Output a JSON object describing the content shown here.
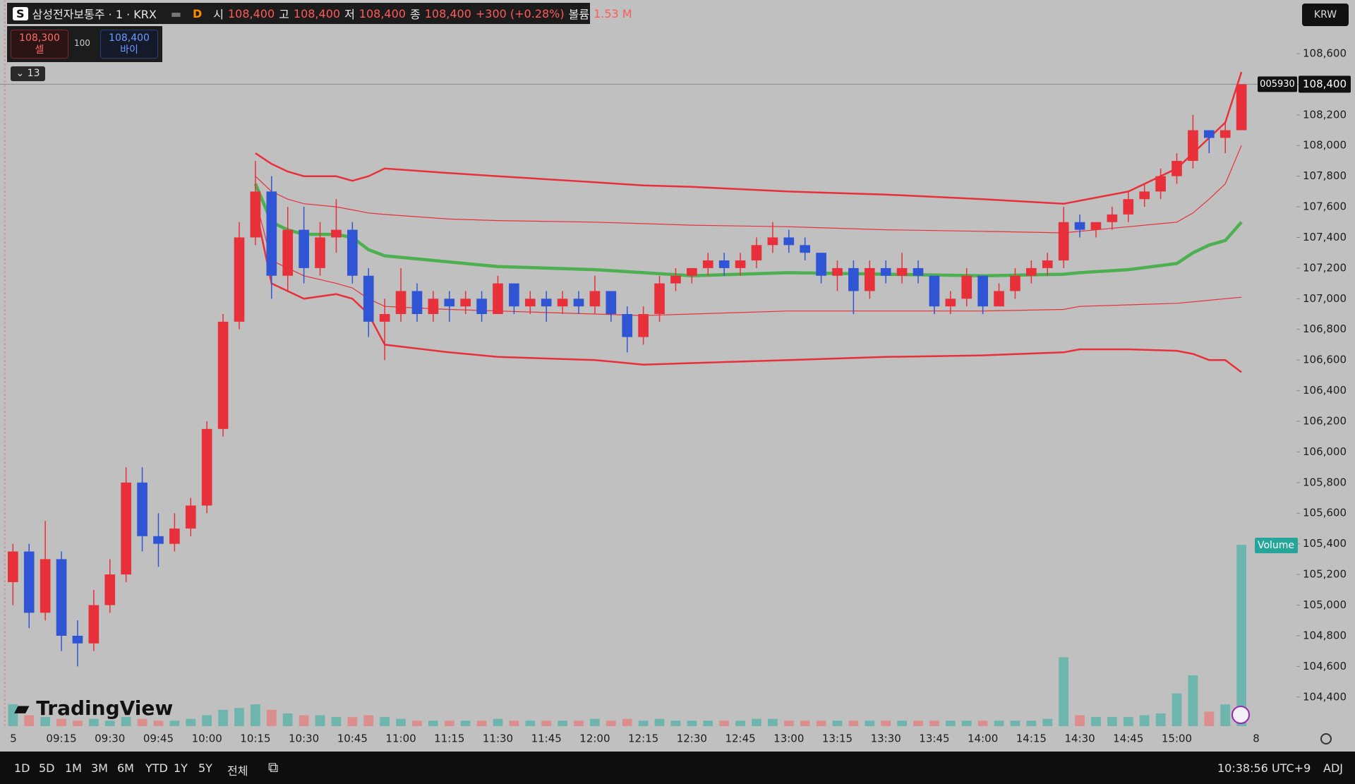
{
  "header": {
    "badge": "S",
    "symbol": "삼성전자보통주 · 1 · KRX",
    "status": "D",
    "open_label": "시",
    "open": "108,400",
    "high_label": "고",
    "high": "108,400",
    "low_label": "저",
    "low": "108,400",
    "close_label": "종",
    "close": "108,400",
    "change": "+300 (+0.28%)",
    "volume_label": "볼륨",
    "volume": "1.53 M",
    "sell_price": "108,300",
    "sell_label": "셀",
    "spread": "100",
    "buy_price": "108,400",
    "buy_label": "바이",
    "indicators_count": "13",
    "currency": "KRW",
    "logo": "TradingView"
  },
  "toolbar": {
    "ranges": [
      "1D",
      "5D",
      "1M",
      "3M",
      "6M",
      "YTD",
      "1Y",
      "5Y",
      "전체"
    ],
    "clock": "10:38:56 UTC+9",
    "adjust": "ADJ"
  },
  "chart_data": {
    "type": "candlestick",
    "up_color": "#e8303a",
    "down_color": "#2f55d4",
    "x": [
      "09:00",
      "09:05",
      "09:10",
      "09:15",
      "09:20",
      "09:25",
      "09:30",
      "09:35",
      "09:40",
      "09:45",
      "09:50",
      "09:55",
      "10:00",
      "10:05",
      "10:10",
      "10:15",
      "10:20",
      "10:25",
      "10:30",
      "10:35",
      "10:40",
      "10:45",
      "10:50",
      "10:55",
      "11:00",
      "11:05",
      "11:10",
      "11:15",
      "11:20",
      "11:25",
      "11:30",
      "11:35",
      "11:40",
      "11:45",
      "11:50",
      "11:55",
      "12:00",
      "12:05",
      "12:10",
      "12:15",
      "12:20",
      "12:25",
      "12:30",
      "12:35",
      "12:40",
      "12:45",
      "12:50",
      "12:55",
      "13:00",
      "13:05",
      "13:10",
      "13:15",
      "13:20",
      "13:25",
      "13:30",
      "13:35",
      "13:40",
      "13:45",
      "13:50",
      "13:55",
      "14:00",
      "14:05",
      "14:10",
      "14:15",
      "14:20",
      "14:25",
      "14:30",
      "14:35",
      "14:40",
      "14:45",
      "14:50",
      "14:55",
      "15:00",
      "15:05",
      "15:10",
      "15:15",
      "15:20"
    ],
    "open": [
      105150,
      105350,
      104950,
      105300,
      104800,
      104750,
      105000,
      105200,
      105800,
      105450,
      105400,
      105500,
      105650,
      106150,
      106850,
      107400,
      107700,
      107150,
      107450,
      107200,
      107400,
      107450,
      107150,
      106850,
      106900,
      107050,
      106900,
      107000,
      106950,
      107000,
      106900,
      107100,
      106950,
      107000,
      106950,
      107000,
      106950,
      107050,
      106900,
      106750,
      106900,
      107100,
      107150,
      107200,
      107250,
      107200,
      107250,
      107350,
      107400,
      107350,
      107300,
      107150,
      107200,
      107050,
      107200,
      107150,
      107200,
      107150,
      106950,
      107000,
      107150,
      106950,
      107050,
      107150,
      107200,
      107250,
      107500,
      107450,
      107500,
      107550,
      107650,
      107700,
      107800,
      107900,
      108100,
      108050,
      108100
    ],
    "high": [
      105400,
      105400,
      105550,
      105350,
      104900,
      105100,
      105300,
      105900,
      105900,
      105600,
      105600,
      105700,
      106200,
      106900,
      107500,
      107900,
      107800,
      107600,
      107600,
      107500,
      107650,
      107500,
      107200,
      107000,
      107200,
      107100,
      107050,
      107050,
      107050,
      107050,
      107150,
      107100,
      107050,
      107050,
      107050,
      107050,
      107150,
      107050,
      106950,
      106950,
      107150,
      107200,
      107200,
      107300,
      107300,
      107300,
      107400,
      107500,
      107450,
      107400,
      107300,
      107250,
      107250,
      107250,
      107250,
      107300,
      107250,
      107150,
      107050,
      107200,
      107150,
      107100,
      107200,
      107250,
      107300,
      107600,
      107550,
      107500,
      107600,
      107700,
      107750,
      107850,
      107950,
      108200,
      108100,
      108150,
      108400
    ],
    "low": [
      105000,
      104850,
      104900,
      104700,
      104600,
      104700,
      104950,
      105150,
      105350,
      105250,
      105350,
      105450,
      105600,
      106100,
      106800,
      107350,
      107000,
      107050,
      107100,
      107150,
      107300,
      107100,
      106750,
      106600,
      106850,
      106850,
      106850,
      106850,
      106900,
      106850,
      106900,
      106900,
      106900,
      106850,
      106900,
      106900,
      106900,
      106850,
      106650,
      106700,
      106850,
      107050,
      107100,
      107150,
      107150,
      107150,
      107200,
      107300,
      107300,
      107250,
      107100,
      107050,
      106900,
      107000,
      107100,
      107100,
      107100,
      106900,
      106900,
      106950,
      106900,
      106950,
      107000,
      107100,
      107150,
      107200,
      107400,
      107400,
      107450,
      107500,
      107600,
      107650,
      107750,
      107850,
      107950,
      107950,
      108100
    ],
    "close": [
      105350,
      104950,
      105300,
      104800,
      104750,
      105000,
      105200,
      105800,
      105450,
      105400,
      105500,
      105650,
      106150,
      106850,
      107400,
      107700,
      107150,
      107450,
      107200,
      107400,
      107450,
      107150,
      106850,
      106900,
      107050,
      106900,
      107000,
      106950,
      107000,
      106900,
      107100,
      106950,
      107000,
      106950,
      107000,
      106950,
      107050,
      106900,
      106750,
      106900,
      107100,
      107150,
      107200,
      107250,
      107200,
      107250,
      107350,
      107400,
      107350,
      107300,
      107150,
      107200,
      107050,
      107200,
      107150,
      107200,
      107150,
      106950,
      107000,
      107150,
      106950,
      107050,
      107150,
      107200,
      107250,
      107500,
      107450,
      107500,
      107550,
      107650,
      107700,
      107800,
      107900,
      108100,
      108050,
      108100,
      108400
    ],
    "ylim": [
      104210,
      108950
    ],
    "yticks": [
      {
        "value": 104400,
        "label": "104,400"
      },
      {
        "value": 104600,
        "label": "104,600"
      },
      {
        "value": 104800,
        "label": "104,800"
      },
      {
        "value": 105000,
        "label": "105,000"
      },
      {
        "value": 105200,
        "label": "105,200"
      },
      {
        "value": 105400,
        "label": "105,400"
      },
      {
        "value": 105600,
        "label": "105,600"
      },
      {
        "value": 105800,
        "label": "105,800"
      },
      {
        "value": 106000,
        "label": "106,000"
      },
      {
        "value": 106200,
        "label": "106,200"
      },
      {
        "value": 106400,
        "label": "106,400"
      },
      {
        "value": 106600,
        "label": "106,600"
      },
      {
        "value": 106800,
        "label": "106,800"
      },
      {
        "value": 107000,
        "label": "107,000"
      },
      {
        "value": 107200,
        "label": "107,200"
      },
      {
        "value": 107400,
        "label": "107,400"
      },
      {
        "value": 107600,
        "label": "107,600"
      },
      {
        "value": 107800,
        "label": "107,800"
      },
      {
        "value": 108000,
        "label": "108,000"
      },
      {
        "value": 108200,
        "label": "108,200"
      },
      {
        "value": 108400,
        "label": "108,400"
      },
      {
        "value": 108600,
        "label": "108,600"
      }
    ],
    "xlim": [
      "08:56",
      "15:37"
    ],
    "xticks": [
      "09:15",
      "09:30",
      "09:45",
      "10:00",
      "10:15",
      "10:30",
      "10:45",
      "11:00",
      "11:15",
      "11:30",
      "11:45",
      "12:00",
      "12:15",
      "12:30",
      "12:45",
      "13:00",
      "13:15",
      "13:30",
      "13:45",
      "14:00",
      "14:15",
      "14:30",
      "14:45",
      "15:00"
    ],
    "session_start_label": "5",
    "next_session_label": "8",
    "volume": {
      "label": "Volume",
      "up_color": "#5fb3a9",
      "down_color": "#e08585",
      "vlim": [
        0,
        100
      ],
      "values": [
        12,
        6,
        5,
        4,
        3,
        4,
        3,
        5,
        4,
        3,
        3,
        4,
        6,
        9,
        10,
        12,
        9,
        7,
        6,
        6,
        5,
        5,
        6,
        5,
        4,
        3,
        3,
        3,
        3,
        3,
        4,
        3,
        3,
        3,
        3,
        3,
        4,
        3,
        4,
        3,
        4,
        3,
        3,
        3,
        3,
        3,
        4,
        4,
        3,
        3,
        3,
        3,
        3,
        3,
        3,
        3,
        3,
        3,
        3,
        3,
        3,
        3,
        3,
        3,
        4,
        38,
        6,
        5,
        5,
        5,
        6,
        7,
        18,
        28,
        8,
        12,
        100
      ]
    },
    "bands": {
      "x": [
        "10:15",
        "10:20",
        "10:25",
        "10:30",
        "10:40",
        "10:45",
        "10:50",
        "10:55",
        "11:15",
        "11:30",
        "12:00",
        "12:15",
        "12:30",
        "13:00",
        "13:30",
        "14:00",
        "14:25",
        "14:30",
        "14:45",
        "15:00",
        "15:05",
        "15:10",
        "15:15",
        "15:20"
      ],
      "series": [
        {
          "color": "#e8303a",
          "values": [
            107950,
            107880,
            107830,
            107800,
            107800,
            107770,
            107800,
            107850,
            107820,
            107800,
            107760,
            107740,
            107730,
            107700,
            107680,
            107650,
            107620,
            107640,
            107700,
            107850,
            107950,
            108050,
            108150,
            108480
          ]
        },
        {
          "color": "#e8303a",
          "values": [
            107800,
            107700,
            107650,
            107620,
            107600,
            107580,
            107560,
            107550,
            107520,
            107510,
            107500,
            107490,
            107480,
            107470,
            107450,
            107440,
            107430,
            107440,
            107470,
            107500,
            107560,
            107650,
            107750,
            108000
          ]
        },
        {
          "color": "#4caf50",
          "values": [
            107750,
            107500,
            107450,
            107420,
            107420,
            107400,
            107320,
            107280,
            107240,
            107210,
            107190,
            107170,
            107150,
            107170,
            107160,
            107150,
            107160,
            107170,
            107190,
            107230,
            107300,
            107350,
            107380,
            107500
          ]
        },
        {
          "color": "#e8303a",
          "values": [
            107650,
            107250,
            107200,
            107150,
            107100,
            107070,
            107000,
            106950,
            106930,
            106920,
            106900,
            106890,
            106900,
            106920,
            106920,
            106920,
            106930,
            106950,
            106960,
            106970,
            106980,
            106990,
            107000,
            107010
          ]
        },
        {
          "color": "#e8303a",
          "values": [
            107600,
            107100,
            107050,
            107000,
            107030,
            107000,
            106900,
            106700,
            106650,
            106620,
            106600,
            106570,
            106580,
            106600,
            106620,
            106630,
            106650,
            106670,
            106670,
            106660,
            106640,
            106600,
            106600,
            106520
          ]
        }
      ]
    },
    "last_price": {
      "symbol": "005930",
      "value": 108400,
      "label": "108,400"
    }
  }
}
